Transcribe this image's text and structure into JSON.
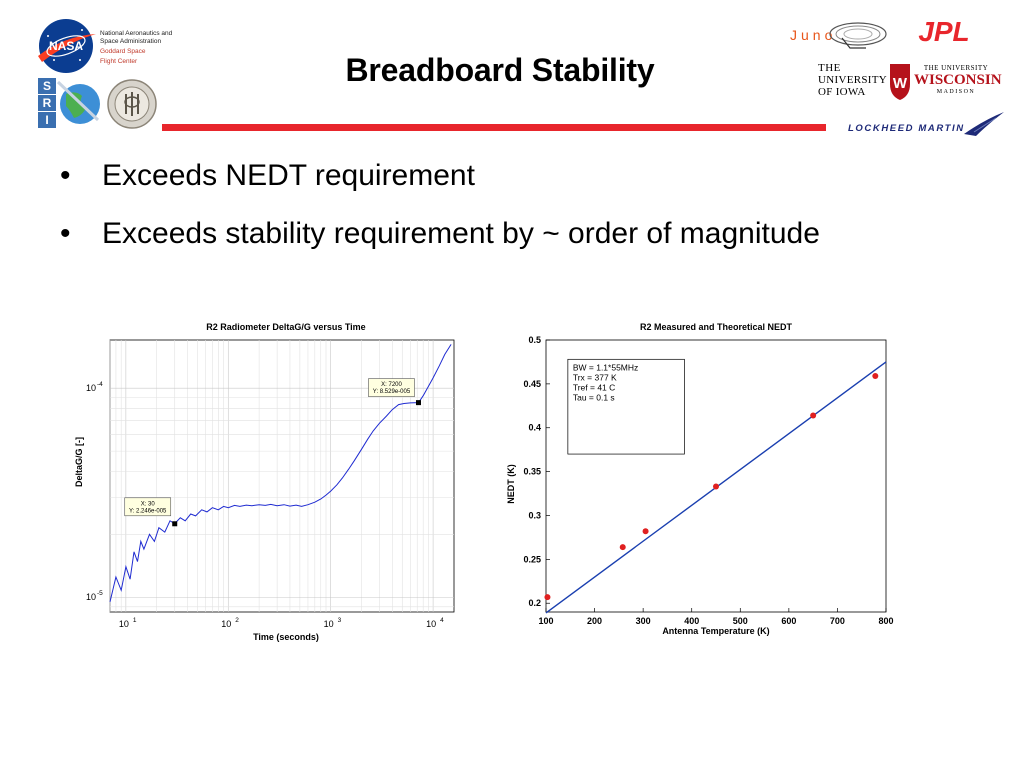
{
  "slide": {
    "title": "Breadboard Stability",
    "bullets": [
      "Exceeds NEDT requirement",
      "Exceeds stability requirement by ~ order of magnitude"
    ]
  },
  "logos": {
    "nasa": {
      "name": "NASA",
      "line1": "National Aeronautics and",
      "line2": "Space Administration",
      "line3": "Goddard Space",
      "line4": "Flight Center"
    },
    "swri": "SwRI",
    "jhu": "JHU",
    "juno": "Juno",
    "jpl": "JPL",
    "iowa": {
      "line1": "THE",
      "line2": "UNIVERSITY",
      "line3": "OF IOWA"
    },
    "uw": {
      "line1": "THE UNIVERSITY",
      "line2": "WISCONSIN",
      "line3": "MADISON"
    },
    "lockheed": "LOCKHEED MARTIN"
  },
  "colors": {
    "accent_red": "#e8262c",
    "trace_blue": "#1f2bd1",
    "point_red": "#e02020",
    "fit_blue": "#1a3fb0"
  },
  "chart_data": [
    {
      "type": "line",
      "title": "R2 Radiometer DeltaG/G versus Time",
      "xlabel": "Time (seconds)",
      "ylabel": "DeltaG/G [-]",
      "xscale": "log",
      "yscale": "log",
      "xlim": [
        7,
        16000
      ],
      "ylim": [
        8.5e-06,
        0.00017
      ],
      "xticks": [
        {
          "value": 10,
          "base": "10",
          "exp": "1"
        },
        {
          "value": 100,
          "base": "10",
          "exp": "2"
        },
        {
          "value": 1000,
          "base": "10",
          "exp": "3"
        },
        {
          "value": 10000,
          "base": "10",
          "exp": "4"
        }
      ],
      "yticks": [
        {
          "value": 1e-05,
          "base": "10",
          "exp": "-5"
        },
        {
          "value": 0.0001,
          "base": "10",
          "exp": "-4"
        }
      ],
      "grid": true,
      "series": [
        {
          "color": "#1f2bd1",
          "x": [
            7,
            8,
            9,
            10,
            11,
            12,
            13,
            14,
            15,
            17,
            19,
            21,
            24,
            27,
            30,
            34,
            38,
            43,
            48,
            55,
            62,
            70,
            80,
            90,
            100,
            115,
            130,
            150,
            170,
            200,
            230,
            260,
            300,
            350,
            400,
            460,
            520,
            600,
            700,
            800,
            900,
            1000,
            1150,
            1300,
            1500,
            1700,
            2000,
            2300,
            2600,
            3000,
            3500,
            4000,
            4600,
            5200,
            6000,
            7200,
            8000,
            9000,
            10000,
            11500,
            13000,
            15000
          ],
          "y": [
            9.5e-06,
            1.25e-05,
            1.08e-05,
            1.4e-05,
            1.22e-05,
            1.65e-05,
            1.48e-05,
            1.85e-05,
            1.7e-05,
            2e-05,
            1.85e-05,
            2.15e-05,
            2.05e-05,
            2.32e-05,
            2.25e-05,
            2.4e-05,
            2.32e-05,
            2.5e-05,
            2.45e-05,
            2.62e-05,
            2.56e-05,
            2.68e-05,
            2.62e-05,
            2.72e-05,
            2.68e-05,
            2.75e-05,
            2.72e-05,
            2.76e-05,
            2.74e-05,
            2.77e-05,
            2.75e-05,
            2.78e-05,
            2.74e-05,
            2.77e-05,
            2.73e-05,
            2.76e-05,
            2.72e-05,
            2.77e-05,
            2.85e-05,
            2.95e-05,
            3.08e-05,
            3.22e-05,
            3.45e-05,
            3.72e-05,
            4.1e-05,
            4.5e-05,
            5.1e-05,
            5.7e-05,
            6.25e-05,
            6.8e-05,
            7.35e-05,
            7.9e-05,
            8.35e-05,
            8.45e-05,
            8.5e-05,
            8.53e-05,
            9.2e-05,
            0.000102,
            0.000112,
            0.000128,
            0.000145,
            0.000162
          ]
        }
      ],
      "annotations": [
        {
          "x": 30,
          "y": 2.246e-05,
          "label_x": "X: 30",
          "label_y": "Y: 2.246e-005"
        },
        {
          "x": 7200,
          "y": 8.529e-05,
          "label_x": "X: 7200",
          "label_y": "Y: 8.529e-005"
        }
      ]
    },
    {
      "type": "scatter",
      "title": "R2 Measured and Theoretical NEDT",
      "xlabel": "Antenna Temperature (K)",
      "ylabel": "NEDT (K)",
      "xlim": [
        100,
        800
      ],
      "ylim": [
        0.19,
        0.5
      ],
      "xticks": [
        100,
        200,
        300,
        400,
        500,
        600,
        700,
        800
      ],
      "yticks": [
        0.2,
        0.25,
        0.3,
        0.35,
        0.4,
        0.45,
        0.5
      ],
      "ytick_labels": [
        "0.2",
        "0.25",
        "0.3",
        "0.35",
        "0.4",
        "0.45",
        "0.5"
      ],
      "grid": false,
      "measured": {
        "x": [
          103,
          258,
          305,
          450,
          650,
          778
        ],
        "y": [
          0.207,
          0.264,
          0.282,
          0.333,
          0.414,
          0.459
        ]
      },
      "theoretical": {
        "x": [
          100,
          800
        ],
        "y": [
          0.189,
          0.475
        ]
      },
      "legend_box": [
        "BW = 1.1*55MHz",
        "Trx = 377 K",
        "Tref = 41 C",
        "Tau = 0.1 s"
      ]
    }
  ]
}
